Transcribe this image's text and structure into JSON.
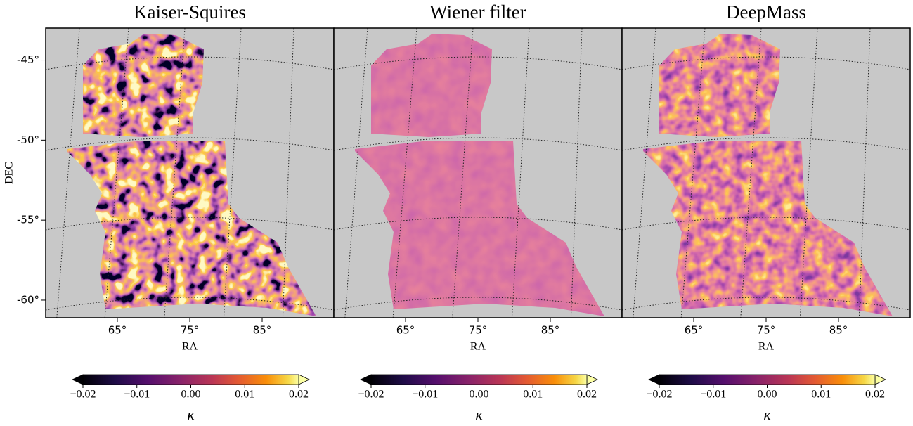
{
  "chart_data": [
    {
      "type": "map",
      "title": "Kaiser-Squires",
      "xlabel": "RA",
      "ylabel": "DEC",
      "xlim": [
        55.1,
        94.9
      ],
      "ylim": [
        -61.1,
        -43.0
      ],
      "xticks": [
        {
          "value": 65,
          "label": "65°"
        },
        {
          "value": 75,
          "label": "75°"
        },
        {
          "value": 85,
          "label": "85°"
        }
      ],
      "yticks": [
        {
          "value": -45,
          "label": "-45°"
        },
        {
          "value": -50,
          "label": "-50°"
        },
        {
          "value": -55,
          "label": "-55°"
        },
        {
          "value": -60,
          "label": "-60°"
        }
      ],
      "colorbar": {
        "label": "κ",
        "clim": [
          -0.02,
          0.02
        ],
        "ticks": [
          {
            "value": -0.02,
            "label": "−0.02"
          },
          {
            "value": -0.01,
            "label": "−0.01"
          },
          {
            "value": 0,
            "label": "0.00"
          },
          {
            "value": 0.01,
            "label": "0.01"
          },
          {
            "value": 0.02,
            "label": "0.02"
          }
        ]
      }
    },
    {
      "type": "map",
      "title": "Wiener filter",
      "xlabel": "RA",
      "xlim": [
        55.1,
        94.9
      ],
      "ylim": [
        -61.1,
        -43.0
      ],
      "xticks": [
        {
          "value": 65,
          "label": "65°"
        },
        {
          "value": 75,
          "label": "75°"
        },
        {
          "value": 85,
          "label": "85°"
        }
      ],
      "colorbar": {
        "label": "κ",
        "clim": [
          -0.02,
          0.02
        ],
        "ticks": [
          {
            "value": -0.02,
            "label": "−0.02"
          },
          {
            "value": -0.01,
            "label": "−0.01"
          },
          {
            "value": 0,
            "label": "0.00"
          },
          {
            "value": 0.01,
            "label": "0.01"
          },
          {
            "value": 0.02,
            "label": "0.02"
          }
        ]
      }
    },
    {
      "type": "map",
      "title": "DeepMass",
      "xlabel": "RA",
      "xlim": [
        55.1,
        94.9
      ],
      "ylim": [
        -61.1,
        -43.0
      ],
      "xticks": [
        {
          "value": 65,
          "label": "65°"
        },
        {
          "value": 75,
          "label": "75°"
        },
        {
          "value": 85,
          "label": "85°"
        }
      ],
      "colorbar": {
        "label": "κ",
        "clim": [
          -0.02,
          0.02
        ],
        "ticks": [
          {
            "value": -0.02,
            "label": "−0.02"
          },
          {
            "value": -0.01,
            "label": "−0.01"
          },
          {
            "value": 0,
            "label": "0.00"
          },
          {
            "value": 0.01,
            "label": "0.01"
          },
          {
            "value": 0.02,
            "label": "0.02"
          }
        ]
      }
    }
  ]
}
